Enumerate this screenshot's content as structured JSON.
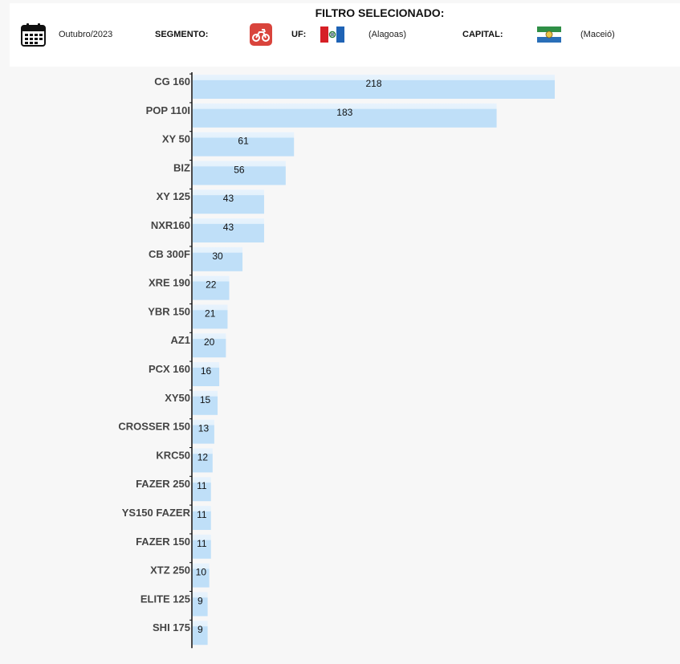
{
  "filter": {
    "title": "FILTRO SELECIONADO:",
    "period": "Outubro/2023",
    "segment_label": "SEGMENTO:",
    "segment_icon": "motorcycle-icon",
    "uf_label": "UF:",
    "uf_value": "(Alagoas)",
    "uf_icon": "alagoas-flag-icon",
    "capital_label": "CAPITAL:",
    "capital_value": "(Maceió)",
    "capital_icon": "maceio-flag-icon",
    "calendar_icon": "calendar-icon"
  },
  "colors": {
    "bar_fill": "#bfdff8",
    "bar_highlight": "#e3f1fc",
    "axis": "#111111",
    "segment_icon_bg": "#d9443c"
  },
  "chart_data": {
    "type": "bar",
    "orientation": "horizontal",
    "categories": [
      "CG 160",
      "POP 110I",
      "XY 50",
      "BIZ",
      "XY 125",
      "NXR160",
      "CB 300F",
      "XRE 190",
      "YBR 150",
      "AZ1",
      "PCX 160",
      "XY50",
      "CROSSER 150",
      "KRC50",
      "FAZER 250",
      "YS150 FAZER",
      "FAZER 150",
      "XTZ 250",
      "ELITE 125",
      "SHI 175"
    ],
    "values": [
      218,
      183,
      61,
      56,
      43,
      43,
      30,
      22,
      21,
      20,
      16,
      15,
      13,
      12,
      11,
      11,
      11,
      10,
      9,
      9
    ],
    "title": "",
    "xlabel": "",
    "ylabel": "",
    "xlim": [
      0,
      218
    ],
    "grid": false,
    "legend": "none",
    "data_labels": true
  }
}
